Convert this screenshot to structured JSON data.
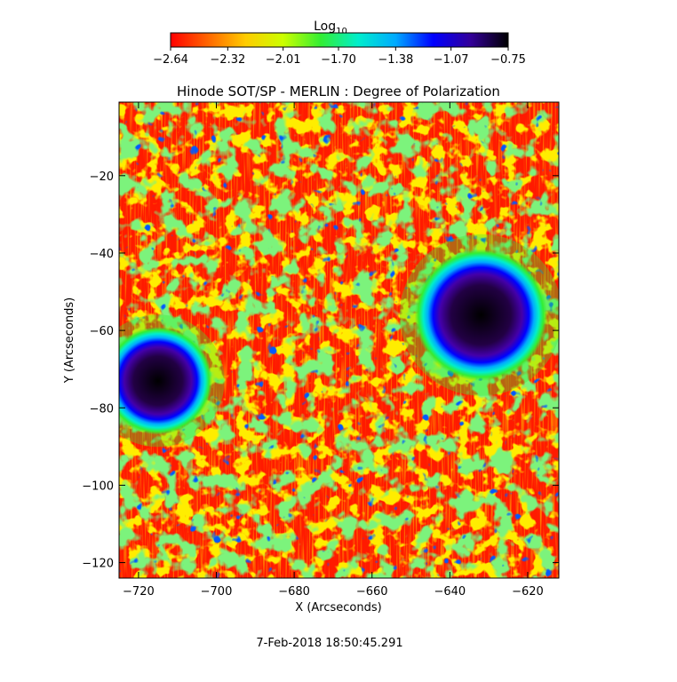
{
  "chart_data": {
    "type": "heatmap",
    "title": "Hinode SOT/SP - MERLIN : Degree of Polarization",
    "xlabel": "X (Arcseconds)",
    "ylabel": "Y (Arcseconds)",
    "xlim": [
      -725,
      -612
    ],
    "ylim": [
      -124,
      -1
    ],
    "xticks": [
      -720,
      -700,
      -680,
      -660,
      -640,
      -620
    ],
    "yticks": [
      -120,
      -100,
      -80,
      -60,
      -40,
      -20
    ],
    "colorbar": {
      "label_base": "Log",
      "label_sub": "10",
      "range": [
        -2.64,
        -0.75
      ],
      "ticks": [
        -2.64,
        -2.32,
        -2.01,
        -1.7,
        -1.38,
        -1.07,
        -0.75
      ],
      "tick_labels": [
        "−2.64",
        "−2.32",
        "−2.01",
        "−1.70",
        "−1.38",
        "−1.07",
        "−0.75"
      ],
      "colormap": [
        "#ff0000",
        "#ff6600",
        "#ffcc00",
        "#ccff00",
        "#33ee33",
        "#00eecc",
        "#00aaff",
        "#0000ff",
        "#330099",
        "#000000"
      ]
    },
    "features": [
      {
        "name": "sunspot",
        "x": -632,
        "y": -56,
        "rx": 11,
        "ry": 11,
        "value": -0.75
      },
      {
        "name": "sunspot",
        "x": -715,
        "y": -73,
        "rx": 9,
        "ry": 9,
        "value": -0.8
      }
    ],
    "grid": false
  },
  "footer": {
    "timestamp": "7-Feb-2018 18:50:45.291"
  }
}
